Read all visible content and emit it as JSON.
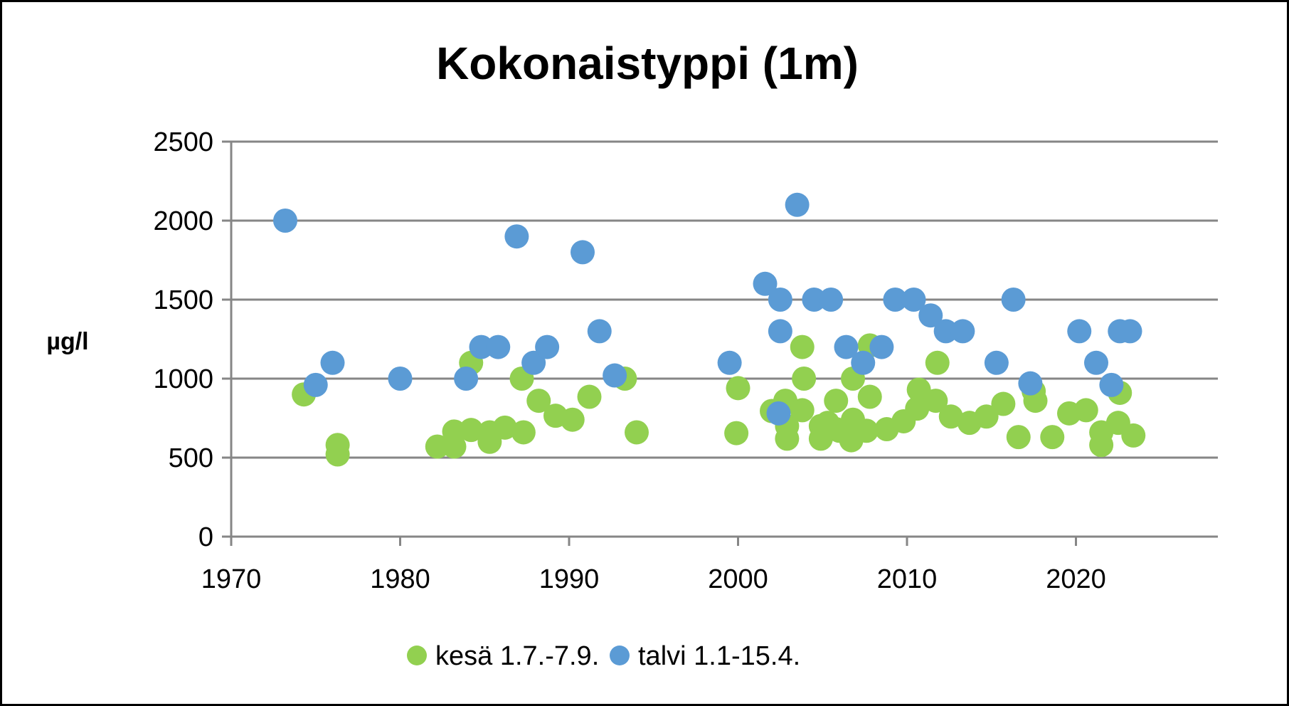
{
  "chart_data": {
    "type": "scatter",
    "title": "Kokonaistyppi (1m)",
    "xlabel": "",
    "ylabel": "µg/l",
    "xlim": [
      1970,
      2028.4
    ],
    "ylim": [
      0,
      2500
    ],
    "xticks": [
      1970,
      1980,
      1990,
      2000,
      2010,
      2020
    ],
    "yticks": [
      0,
      500,
      1000,
      1500,
      2000,
      2500
    ],
    "grid": "horizontal",
    "legend_position": "bottom",
    "series": [
      {
        "name": "kesä 1.7.-7.9.",
        "color": "#92d050",
        "points": [
          [
            1974.3,
            900
          ],
          [
            1976.3,
            580
          ],
          [
            1976.3,
            520
          ],
          [
            1982.2,
            570
          ],
          [
            1983.2,
            665
          ],
          [
            1983.2,
            570
          ],
          [
            1984.2,
            1100
          ],
          [
            1984.2,
            675
          ],
          [
            1985.3,
            600
          ],
          [
            1985.3,
            660
          ],
          [
            1986.2,
            690
          ],
          [
            1987.2,
            1000
          ],
          [
            1987.3,
            660
          ],
          [
            1988.2,
            860
          ],
          [
            1989.2,
            765
          ],
          [
            1990.2,
            740
          ],
          [
            1991.2,
            885
          ],
          [
            1993.3,
            1000
          ],
          [
            1994.0,
            660
          ],
          [
            2000.0,
            940
          ],
          [
            1999.9,
            655
          ],
          [
            2002.0,
            795
          ],
          [
            2002.8,
            860
          ],
          [
            2002.9,
            620
          ],
          [
            2002.9,
            700
          ],
          [
            2003.8,
            1200
          ],
          [
            2003.9,
            1000
          ],
          [
            2003.8,
            800
          ],
          [
            2004.9,
            700
          ],
          [
            2004.9,
            620
          ],
          [
            2005.3,
            720
          ],
          [
            2005.8,
            860
          ],
          [
            2005.8,
            680
          ],
          [
            2006.0,
            670
          ],
          [
            2006.8,
            1000
          ],
          [
            2006.8,
            740
          ],
          [
            2006.7,
            610
          ],
          [
            2007.6,
            670
          ],
          [
            2007.8,
            885
          ],
          [
            2007.8,
            1210
          ],
          [
            2008.8,
            680
          ],
          [
            2009.8,
            730
          ],
          [
            2010.7,
            930
          ],
          [
            2010.6,
            810
          ],
          [
            2011.7,
            860
          ],
          [
            2011.8,
            1100
          ],
          [
            2012.6,
            760
          ],
          [
            2013.7,
            720
          ],
          [
            2014.7,
            760
          ],
          [
            2015.7,
            840
          ],
          [
            2016.6,
            630
          ],
          [
            2017.6,
            860
          ],
          [
            2017.5,
            920
          ],
          [
            2018.6,
            630
          ],
          [
            2019.6,
            780
          ],
          [
            2020.6,
            800
          ],
          [
            2021.5,
            580
          ],
          [
            2021.5,
            660
          ],
          [
            2022.5,
            720
          ],
          [
            2022.6,
            910
          ],
          [
            2023.4,
            640
          ]
        ]
      },
      {
        "name": "talvi 1.1-15.4.",
        "color": "#5b9bd5",
        "points": [
          [
            1973.2,
            2000
          ],
          [
            1975.0,
            960
          ],
          [
            1976.0,
            1100
          ],
          [
            1980.0,
            1000
          ],
          [
            1983.9,
            1000
          ],
          [
            1984.8,
            1200
          ],
          [
            1985.8,
            1200
          ],
          [
            1986.9,
            1900
          ],
          [
            1987.9,
            1100
          ],
          [
            1988.7,
            1200
          ],
          [
            1990.8,
            1800
          ],
          [
            1991.8,
            1300
          ],
          [
            1992.7,
            1020
          ],
          [
            1999.5,
            1100
          ],
          [
            2001.6,
            1600
          ],
          [
            2002.5,
            1500
          ],
          [
            2002.5,
            1300
          ],
          [
            2002.4,
            780
          ],
          [
            2003.5,
            2100
          ],
          [
            2004.5,
            1500
          ],
          [
            2005.5,
            1500
          ],
          [
            2006.4,
            1200
          ],
          [
            2007.4,
            1100
          ],
          [
            2008.5,
            1200
          ],
          [
            2009.3,
            1500
          ],
          [
            2010.4,
            1500
          ],
          [
            2011.4,
            1400
          ],
          [
            2012.3,
            1300
          ],
          [
            2013.3,
            1300
          ],
          [
            2015.3,
            1100
          ],
          [
            2016.3,
            1500
          ],
          [
            2017.3,
            970
          ],
          [
            2020.2,
            1300
          ],
          [
            2021.2,
            1100
          ],
          [
            2022.1,
            960
          ],
          [
            2022.6,
            1300
          ],
          [
            2023.2,
            1300
          ]
        ]
      }
    ]
  }
}
